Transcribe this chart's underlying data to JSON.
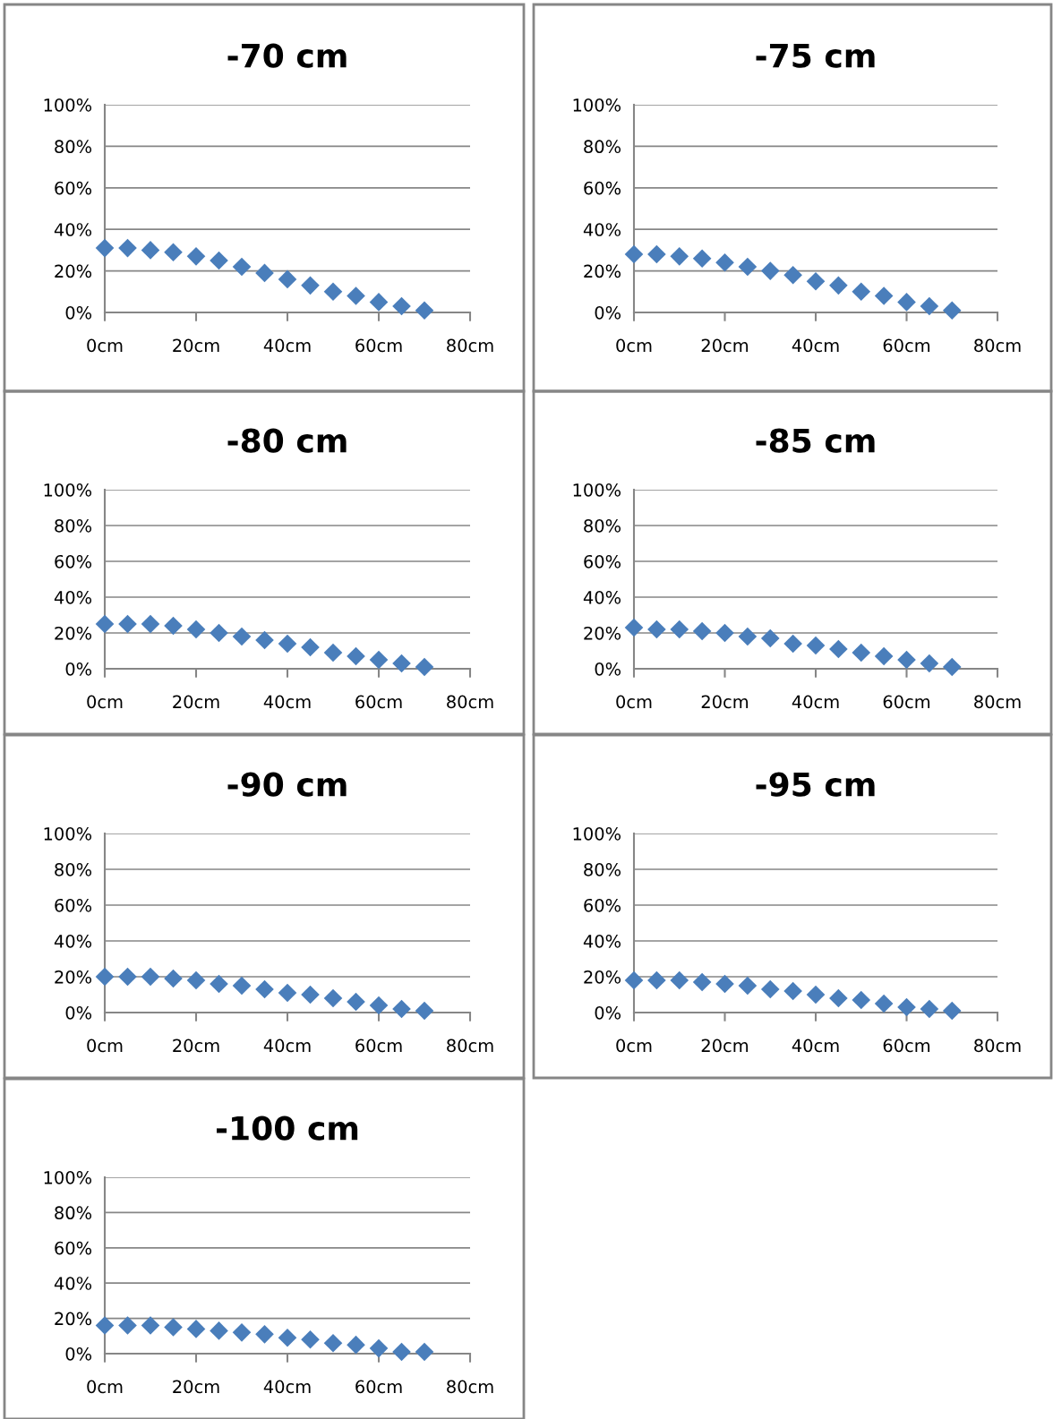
{
  "chart_data": [
    {
      "type": "scatter",
      "title": "-70 cm",
      "x": [
        0,
        5,
        10,
        15,
        20,
        25,
        30,
        35,
        40,
        45,
        50,
        55,
        60,
        65,
        70
      ],
      "series": [
        {
          "color": "#4a7ebb",
          "values": [
            31,
            31,
            30,
            29,
            27,
            25,
            22,
            19,
            16,
            13,
            10,
            8,
            5,
            3,
            1
          ]
        }
      ],
      "xlim": [
        0,
        80
      ],
      "xticks": [
        {
          "value": 0,
          "label": "0cm"
        },
        {
          "value": 20,
          "label": "20cm"
        },
        {
          "value": 40,
          "label": "40cm"
        },
        {
          "value": 60,
          "label": "60cm"
        },
        {
          "value": 80,
          "label": "80cm"
        }
      ],
      "ylim": [
        0,
        100
      ],
      "yticks": [
        {
          "value": 0,
          "label": "0%"
        },
        {
          "value": 20,
          "label": "20%"
        },
        {
          "value": 40,
          "label": "40%"
        },
        {
          "value": 60,
          "label": "60%"
        },
        {
          "value": 80,
          "label": "80%"
        },
        {
          "value": 100,
          "label": "100%"
        }
      ],
      "grid": "y",
      "marker": "diamond",
      "legend": false
    },
    {
      "type": "scatter",
      "title": "-75 cm",
      "x": [
        0,
        5,
        10,
        15,
        20,
        25,
        30,
        35,
        40,
        45,
        50,
        55,
        60,
        65,
        70
      ],
      "series": [
        {
          "color": "#4a7ebb",
          "values": [
            28,
            28,
            27,
            26,
            24,
            22,
            20,
            18,
            15,
            13,
            10,
            8,
            5,
            3,
            1
          ]
        }
      ],
      "xlim": [
        0,
        80
      ],
      "xticks": [
        {
          "value": 0,
          "label": "0cm"
        },
        {
          "value": 20,
          "label": "20cm"
        },
        {
          "value": 40,
          "label": "40cm"
        },
        {
          "value": 60,
          "label": "60cm"
        },
        {
          "value": 80,
          "label": "80cm"
        }
      ],
      "ylim": [
        0,
        100
      ],
      "yticks": [
        {
          "value": 0,
          "label": "0%"
        },
        {
          "value": 20,
          "label": "20%"
        },
        {
          "value": 40,
          "label": "40%"
        },
        {
          "value": 60,
          "label": "60%"
        },
        {
          "value": 80,
          "label": "80%"
        },
        {
          "value": 100,
          "label": "100%"
        }
      ],
      "grid": "y",
      "marker": "diamond",
      "legend": false
    },
    {
      "type": "scatter",
      "title": "-80 cm",
      "x": [
        0,
        5,
        10,
        15,
        20,
        25,
        30,
        35,
        40,
        45,
        50,
        55,
        60,
        65,
        70
      ],
      "series": [
        {
          "color": "#4a7ebb",
          "values": [
            25,
            25,
            25,
            24,
            22,
            20,
            18,
            16,
            14,
            12,
            9,
            7,
            5,
            3,
            1
          ]
        }
      ],
      "xlim": [
        0,
        80
      ],
      "xticks": [
        {
          "value": 0,
          "label": "0cm"
        },
        {
          "value": 20,
          "label": "20cm"
        },
        {
          "value": 40,
          "label": "40cm"
        },
        {
          "value": 60,
          "label": "60cm"
        },
        {
          "value": 80,
          "label": "80cm"
        }
      ],
      "ylim": [
        0,
        100
      ],
      "yticks": [
        {
          "value": 0,
          "label": "0%"
        },
        {
          "value": 20,
          "label": "20%"
        },
        {
          "value": 40,
          "label": "40%"
        },
        {
          "value": 60,
          "label": "60%"
        },
        {
          "value": 80,
          "label": "80%"
        },
        {
          "value": 100,
          "label": "100%"
        }
      ],
      "grid": "y",
      "marker": "diamond",
      "legend": false
    },
    {
      "type": "scatter",
      "title": "-85 cm",
      "x": [
        0,
        5,
        10,
        15,
        20,
        25,
        30,
        35,
        40,
        45,
        50,
        55,
        60,
        65,
        70
      ],
      "series": [
        {
          "color": "#4a7ebb",
          "values": [
            23,
            22,
            22,
            21,
            20,
            18,
            17,
            14,
            13,
            11,
            9,
            7,
            5,
            3,
            1
          ]
        }
      ],
      "xlim": [
        0,
        80
      ],
      "xticks": [
        {
          "value": 0,
          "label": "0cm"
        },
        {
          "value": 20,
          "label": "20cm"
        },
        {
          "value": 40,
          "label": "40cm"
        },
        {
          "value": 60,
          "label": "60cm"
        },
        {
          "value": 80,
          "label": "80cm"
        }
      ],
      "ylim": [
        0,
        100
      ],
      "yticks": [
        {
          "value": 0,
          "label": "0%"
        },
        {
          "value": 20,
          "label": "20%"
        },
        {
          "value": 40,
          "label": "40%"
        },
        {
          "value": 60,
          "label": "60%"
        },
        {
          "value": 80,
          "label": "80%"
        },
        {
          "value": 100,
          "label": "100%"
        }
      ],
      "grid": "y",
      "marker": "diamond",
      "legend": false
    },
    {
      "type": "scatter",
      "title": "-90 cm",
      "x": [
        0,
        5,
        10,
        15,
        20,
        25,
        30,
        35,
        40,
        45,
        50,
        55,
        60,
        65,
        70
      ],
      "series": [
        {
          "color": "#4a7ebb",
          "values": [
            20,
            20,
            20,
            19,
            18,
            16,
            15,
            13,
            11,
            10,
            8,
            6,
            4,
            2,
            1
          ]
        }
      ],
      "xlim": [
        0,
        80
      ],
      "xticks": [
        {
          "value": 0,
          "label": "0cm"
        },
        {
          "value": 20,
          "label": "20cm"
        },
        {
          "value": 40,
          "label": "40cm"
        },
        {
          "value": 60,
          "label": "60cm"
        },
        {
          "value": 80,
          "label": "80cm"
        }
      ],
      "ylim": [
        0,
        100
      ],
      "yticks": [
        {
          "value": 0,
          "label": "0%"
        },
        {
          "value": 20,
          "label": "20%"
        },
        {
          "value": 40,
          "label": "40%"
        },
        {
          "value": 60,
          "label": "60%"
        },
        {
          "value": 80,
          "label": "80%"
        },
        {
          "value": 100,
          "label": "100%"
        }
      ],
      "grid": "y",
      "marker": "diamond",
      "legend": false
    },
    {
      "type": "scatter",
      "title": "-95 cm",
      "x": [
        0,
        5,
        10,
        15,
        20,
        25,
        30,
        35,
        40,
        45,
        50,
        55,
        60,
        65,
        70
      ],
      "series": [
        {
          "color": "#4a7ebb",
          "values": [
            18,
            18,
            18,
            17,
            16,
            15,
            13,
            12,
            10,
            8,
            7,
            5,
            3,
            2,
            1
          ]
        }
      ],
      "xlim": [
        0,
        80
      ],
      "xticks": [
        {
          "value": 0,
          "label": "0cm"
        },
        {
          "value": 20,
          "label": "20cm"
        },
        {
          "value": 40,
          "label": "40cm"
        },
        {
          "value": 60,
          "label": "60cm"
        },
        {
          "value": 80,
          "label": "80cm"
        }
      ],
      "ylim": [
        0,
        100
      ],
      "yticks": [
        {
          "value": 0,
          "label": "0%"
        },
        {
          "value": 20,
          "label": "20%"
        },
        {
          "value": 40,
          "label": "40%"
        },
        {
          "value": 60,
          "label": "60%"
        },
        {
          "value": 80,
          "label": "80%"
        },
        {
          "value": 100,
          "label": "100%"
        }
      ],
      "grid": "y",
      "marker": "diamond",
      "legend": false
    },
    {
      "type": "scatter",
      "title": "-100 cm",
      "x": [
        0,
        5,
        10,
        15,
        20,
        25,
        30,
        35,
        40,
        45,
        50,
        55,
        60,
        65,
        70
      ],
      "series": [
        {
          "color": "#4a7ebb",
          "values": [
            16,
            16,
            16,
            15,
            14,
            13,
            12,
            11,
            9,
            8,
            6,
            5,
            3,
            1,
            1
          ]
        }
      ],
      "xlim": [
        0,
        80
      ],
      "xticks": [
        {
          "value": 0,
          "label": "0cm"
        },
        {
          "value": 20,
          "label": "20cm"
        },
        {
          "value": 40,
          "label": "40cm"
        },
        {
          "value": 60,
          "label": "60cm"
        },
        {
          "value": 80,
          "label": "80cm"
        }
      ],
      "ylim": [
        0,
        100
      ],
      "yticks": [
        {
          "value": 0,
          "label": "0%"
        },
        {
          "value": 20,
          "label": "20%"
        },
        {
          "value": 40,
          "label": "40%"
        },
        {
          "value": 60,
          "label": "60%"
        },
        {
          "value": 80,
          "label": "80%"
        },
        {
          "value": 100,
          "label": "100%"
        }
      ],
      "grid": "y",
      "marker": "diamond",
      "legend": false
    }
  ]
}
